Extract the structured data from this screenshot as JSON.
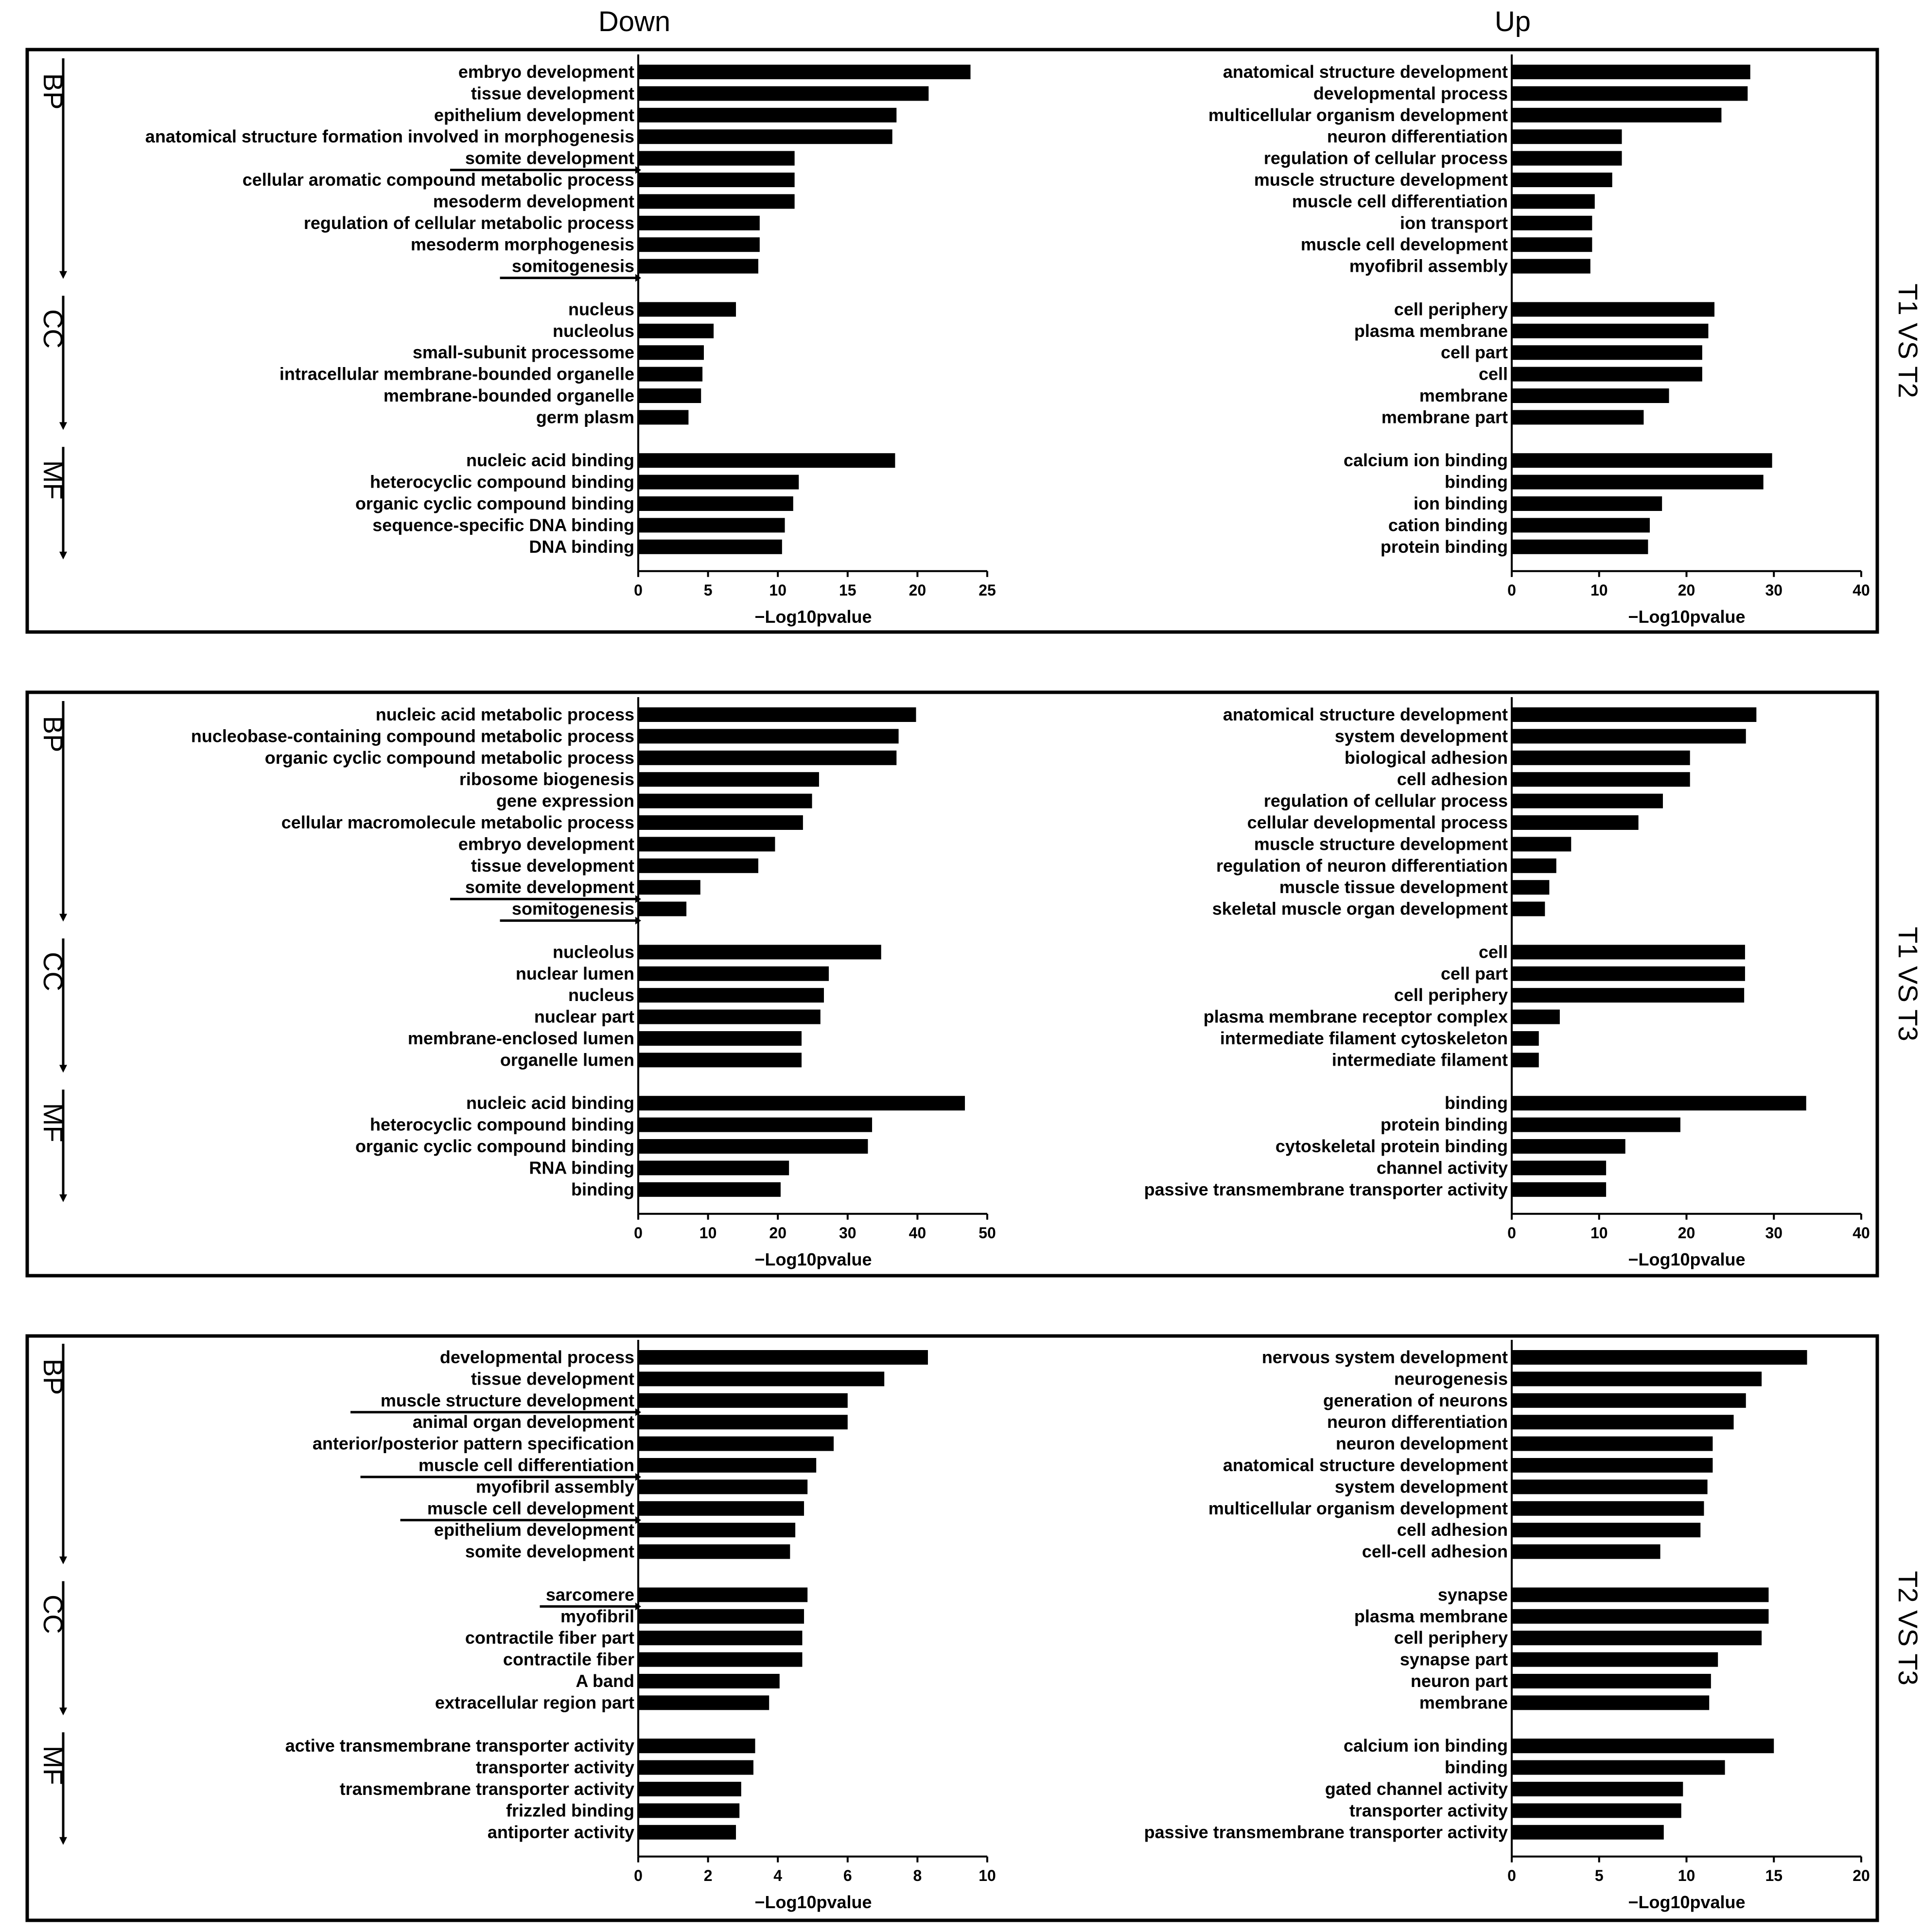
{
  "column_headers": {
    "down": "Down",
    "up": "Up"
  },
  "colors": {
    "bar": "#000000",
    "frame": "#000000",
    "background": "#ffffff"
  },
  "chart_data": [
    {
      "type": "bar",
      "orientation": "horizontal",
      "comparison": "T1 VS T2",
      "direction": "Down",
      "xlabel": "−Log10pvalue",
      "xlim": [
        0,
        25
      ],
      "ticks": [
        0,
        5,
        10,
        15,
        20,
        25
      ],
      "groups": [
        {
          "name": "BP",
          "terms": [
            {
              "term": "embryo development",
              "value": 23.8
            },
            {
              "term": "tissue development",
              "value": 20.8
            },
            {
              "term": "epithelium development",
              "value": 18.5
            },
            {
              "term": "anatomical structure formation involved in morphogenesis",
              "value": 18.2
            },
            {
              "term": "somite development",
              "value": 11.2,
              "underline": true
            },
            {
              "term": "cellular aromatic compound metabolic process",
              "value": 11.2
            },
            {
              "term": "mesoderm development",
              "value": 11.2
            },
            {
              "term": "regulation of cellular metabolic process",
              "value": 8.7
            },
            {
              "term": "mesoderm morphogenesis",
              "value": 8.7
            },
            {
              "term": "somitogenesis",
              "value": 8.6,
              "underline": true
            }
          ]
        },
        {
          "name": "CC",
          "terms": [
            {
              "term": "nucleus",
              "value": 7.0
            },
            {
              "term": "nucleolus",
              "value": 5.4
            },
            {
              "term": "small-subunit processome",
              "value": 4.7
            },
            {
              "term": "intracellular membrane-bounded organelle",
              "value": 4.6
            },
            {
              "term": "membrane-bounded organelle",
              "value": 4.5
            },
            {
              "term": "germ plasm",
              "value": 3.6
            }
          ]
        },
        {
          "name": "MF",
          "terms": [
            {
              "term": "nucleic acid binding",
              "value": 18.4
            },
            {
              "term": "heterocyclic compound binding",
              "value": 11.5
            },
            {
              "term": "organic cyclic compound binding",
              "value": 11.1
            },
            {
              "term": "sequence-specific DNA binding",
              "value": 10.5
            },
            {
              "term": "DNA binding",
              "value": 10.3
            }
          ]
        }
      ]
    },
    {
      "type": "bar",
      "orientation": "horizontal",
      "comparison": "T1 VS T2",
      "direction": "Up",
      "xlabel": "−Log10pvalue",
      "xlim": [
        0,
        40
      ],
      "ticks": [
        0,
        10,
        20,
        30,
        40
      ],
      "groups": [
        {
          "name": "BP",
          "terms": [
            {
              "term": "anatomical structure development",
              "value": 27.3
            },
            {
              "term": "developmental process",
              "value": 27.0
            },
            {
              "term": "multicellular organism development",
              "value": 24.0
            },
            {
              "term": "neuron differentiation",
              "value": 12.6
            },
            {
              "term": "regulation of cellular process",
              "value": 12.6
            },
            {
              "term": "muscle structure development",
              "value": 11.5
            },
            {
              "term": "muscle cell differentiation",
              "value": 9.5
            },
            {
              "term": "ion transport",
              "value": 9.2
            },
            {
              "term": "muscle cell development",
              "value": 9.2
            },
            {
              "term": "myofibril assembly",
              "value": 9.0
            }
          ]
        },
        {
          "name": "CC",
          "terms": [
            {
              "term": "cell periphery",
              "value": 23.2
            },
            {
              "term": "plasma membrane",
              "value": 22.5
            },
            {
              "term": "cell part",
              "value": 21.8
            },
            {
              "term": "cell",
              "value": 21.8
            },
            {
              "term": "membrane",
              "value": 18.0
            },
            {
              "term": "membrane part",
              "value": 15.1
            }
          ]
        },
        {
          "name": "MF",
          "terms": [
            {
              "term": "calcium ion binding",
              "value": 29.8
            },
            {
              "term": "binding",
              "value": 28.8
            },
            {
              "term": "ion binding",
              "value": 17.2
            },
            {
              "term": "cation binding",
              "value": 15.8
            },
            {
              "term": "protein binding",
              "value": 15.6
            }
          ]
        }
      ]
    },
    {
      "type": "bar",
      "orientation": "horizontal",
      "comparison": "T1 VS T3",
      "direction": "Down",
      "xlabel": "−Log10pvalue",
      "xlim": [
        0,
        50
      ],
      "ticks": [
        0,
        10,
        20,
        30,
        40,
        50
      ],
      "groups": [
        {
          "name": "BP",
          "terms": [
            {
              "term": "nucleic acid metabolic process",
              "value": 39.8
            },
            {
              "term": "nucleobase-containing compound metabolic process",
              "value": 37.3
            },
            {
              "term": "organic cyclic compound metabolic process",
              "value": 37.0
            },
            {
              "term": "ribosome biogenesis",
              "value": 25.9
            },
            {
              "term": "gene expression",
              "value": 24.9
            },
            {
              "term": "cellular macromolecule metabolic process",
              "value": 23.6
            },
            {
              "term": "embryo development",
              "value": 19.6
            },
            {
              "term": "tissue development",
              "value": 17.2
            },
            {
              "term": "somite development",
              "value": 8.9,
              "underline": true
            },
            {
              "term": "somitogenesis",
              "value": 6.9,
              "underline": true
            }
          ]
        },
        {
          "name": "CC",
          "terms": [
            {
              "term": "nucleolus",
              "value": 34.8
            },
            {
              "term": "nuclear lumen",
              "value": 27.3
            },
            {
              "term": "nucleus",
              "value": 26.6
            },
            {
              "term": "nuclear part",
              "value": 26.1
            },
            {
              "term": "membrane-enclosed lumen",
              "value": 23.4
            },
            {
              "term": "organelle lumen",
              "value": 23.4
            }
          ]
        },
        {
          "name": "MF",
          "terms": [
            {
              "term": "nucleic acid binding",
              "value": 46.8
            },
            {
              "term": "heterocyclic compound binding",
              "value": 33.5
            },
            {
              "term": "organic cyclic compound binding",
              "value": 32.9
            },
            {
              "term": "RNA binding",
              "value": 21.6
            },
            {
              "term": "binding",
              "value": 20.4
            }
          ]
        }
      ]
    },
    {
      "type": "bar",
      "orientation": "horizontal",
      "comparison": "T1 VS T3",
      "direction": "Up",
      "xlabel": "−Log10pvalue",
      "xlim": [
        0,
        40
      ],
      "ticks": [
        0,
        10,
        20,
        30,
        40
      ],
      "groups": [
        {
          "name": "BP",
          "terms": [
            {
              "term": "anatomical structure development",
              "value": 28.0
            },
            {
              "term": "system development",
              "value": 26.8
            },
            {
              "term": "biological adhesion",
              "value": 20.4
            },
            {
              "term": "cell adhesion",
              "value": 20.4
            },
            {
              "term": "regulation of cellular process",
              "value": 17.3
            },
            {
              "term": "cellular developmental process",
              "value": 14.5
            },
            {
              "term": "muscle structure development",
              "value": 6.8
            },
            {
              "term": "regulation of neuron differentiation",
              "value": 5.1
            },
            {
              "term": "muscle tissue development",
              "value": 4.3
            },
            {
              "term": "skeletal muscle organ development",
              "value": 3.8
            }
          ]
        },
        {
          "name": "CC",
          "terms": [
            {
              "term": "cell",
              "value": 26.7
            },
            {
              "term": "cell part",
              "value": 26.7
            },
            {
              "term": "cell periphery",
              "value": 26.6
            },
            {
              "term": "plasma membrane receptor complex",
              "value": 5.5
            },
            {
              "term": "intermediate filament cytoskeleton",
              "value": 3.1
            },
            {
              "term": "intermediate filament",
              "value": 3.1
            }
          ]
        },
        {
          "name": "MF",
          "terms": [
            {
              "term": "binding",
              "value": 33.7
            },
            {
              "term": "protein binding",
              "value": 19.3
            },
            {
              "term": "cytoskeletal protein binding",
              "value": 13.0
            },
            {
              "term": "channel activity",
              "value": 10.8
            },
            {
              "term": "passive transmembrane transporter activity",
              "value": 10.8
            }
          ]
        }
      ]
    },
    {
      "type": "bar",
      "orientation": "horizontal",
      "comparison": "T2 VS T3",
      "direction": "Down",
      "xlabel": "−Log10pvalue",
      "xlim": [
        0,
        10
      ],
      "ticks": [
        0,
        2,
        4,
        6,
        8,
        10
      ],
      "groups": [
        {
          "name": "BP",
          "terms": [
            {
              "term": "developmental process",
              "value": 8.3
            },
            {
              "term": "tissue development",
              "value": 7.05
            },
            {
              "term": "muscle structure development",
              "value": 6.0,
              "underline": true
            },
            {
              "term": "animal organ development",
              "value": 6.0
            },
            {
              "term": "anterior/posterior pattern specification",
              "value": 5.6
            },
            {
              "term": "muscle cell differentiation",
              "value": 5.1,
              "underline": true
            },
            {
              "term": "myofibril assembly",
              "value": 4.85
            },
            {
              "term": "muscle cell development",
              "value": 4.75,
              "underline": true
            },
            {
              "term": "epithelium development",
              "value": 4.5
            },
            {
              "term": "somite development",
              "value": 4.35
            }
          ]
        },
        {
          "name": "CC",
          "terms": [
            {
              "term": "sarcomere",
              "value": 4.85,
              "underline": true
            },
            {
              "term": "myofibril",
              "value": 4.75
            },
            {
              "term": "contractile fiber part",
              "value": 4.7
            },
            {
              "term": "contractile fiber",
              "value": 4.7
            },
            {
              "term": "A band",
              "value": 4.05
            },
            {
              "term": "extracellular region part",
              "value": 3.75
            }
          ]
        },
        {
          "name": "MF",
          "terms": [
            {
              "term": "active transmembrane transporter activity",
              "value": 3.35
            },
            {
              "term": "transporter activity",
              "value": 3.3
            },
            {
              "term": "transmembrane transporter activity",
              "value": 2.95
            },
            {
              "term": "frizzled binding",
              "value": 2.9
            },
            {
              "term": "antiporter activity",
              "value": 2.8
            }
          ]
        }
      ]
    },
    {
      "type": "bar",
      "orientation": "horizontal",
      "comparison": "T2 VS T3",
      "direction": "Up",
      "xlabel": "−Log10pvalue",
      "xlim": [
        0,
        20
      ],
      "ticks": [
        0,
        5,
        10,
        15,
        20
      ],
      "groups": [
        {
          "name": "BP",
          "terms": [
            {
              "term": "nervous system development",
              "value": 16.9
            },
            {
              "term": "neurogenesis",
              "value": 14.3
            },
            {
              "term": "generation of neurons",
              "value": 13.4
            },
            {
              "term": "neuron differentiation",
              "value": 12.7
            },
            {
              "term": "neuron development",
              "value": 11.5
            },
            {
              "term": "anatomical structure development",
              "value": 11.5
            },
            {
              "term": "system development",
              "value": 11.2
            },
            {
              "term": "multicellular organism development",
              "value": 11.0
            },
            {
              "term": "cell adhesion",
              "value": 10.8
            },
            {
              "term": "cell-cell adhesion",
              "value": 8.5
            }
          ]
        },
        {
          "name": "CC",
          "terms": [
            {
              "term": "synapse",
              "value": 14.7
            },
            {
              "term": "plasma membrane",
              "value": 14.7
            },
            {
              "term": "cell periphery",
              "value": 14.3
            },
            {
              "term": "synapse part",
              "value": 11.8
            },
            {
              "term": "neuron part",
              "value": 11.4
            },
            {
              "term": "membrane",
              "value": 11.3
            }
          ]
        },
        {
          "name": "MF",
          "terms": [
            {
              "term": "calcium ion binding",
              "value": 15.0
            },
            {
              "term": "binding",
              "value": 12.2
            },
            {
              "term": "gated channel activity",
              "value": 9.8
            },
            {
              "term": "transporter activity",
              "value": 9.7
            },
            {
              "term": "passive transmembrane transporter activity",
              "value": 8.7
            }
          ]
        }
      ]
    }
  ]
}
